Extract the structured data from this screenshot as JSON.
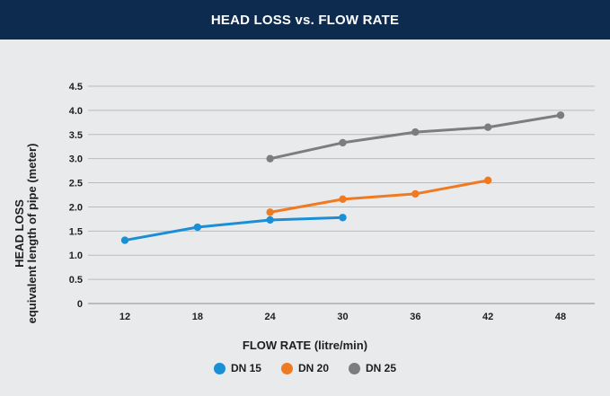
{
  "header": {
    "title": "HEAD LOSS vs. FLOW RATE",
    "bg_color": "#0d2b4f"
  },
  "chart_data": {
    "type": "line",
    "title": "HEAD LOSS vs. FLOW RATE",
    "xlabel": "FLOW RATE (litre/min)",
    "ylabel_line1": "HEAD LOSS",
    "ylabel_line2": "equivalent length of pipe (meter)",
    "x_ticks": [
      "12",
      "18",
      "24",
      "30",
      "36",
      "42",
      "48"
    ],
    "y_ticks": [
      "0",
      "0.5",
      "1.0",
      "1.5",
      "2.0",
      "2.5",
      "3.0",
      "3.5",
      "4.0",
      "4.5"
    ],
    "xlim": [
      12,
      48
    ],
    "ylim": [
      0,
      4.5
    ],
    "grid": "horizontal",
    "legend_position": "bottom",
    "series": [
      {
        "name": "DN 15",
        "color": "#1a8fd6",
        "points": [
          [
            12,
            1.31
          ],
          [
            18,
            1.58
          ],
          [
            24,
            1.73
          ],
          [
            30,
            1.78
          ]
        ]
      },
      {
        "name": "DN 20",
        "color": "#f07a22",
        "points": [
          [
            24,
            1.89
          ],
          [
            30,
            2.16
          ],
          [
            36,
            2.27
          ],
          [
            42,
            2.55
          ]
        ]
      },
      {
        "name": "DN 25",
        "color": "#7d7d7d",
        "points": [
          [
            24,
            3.0
          ],
          [
            30,
            3.33
          ],
          [
            36,
            3.55
          ],
          [
            42,
            3.65
          ],
          [
            48,
            3.9
          ]
        ]
      }
    ]
  }
}
